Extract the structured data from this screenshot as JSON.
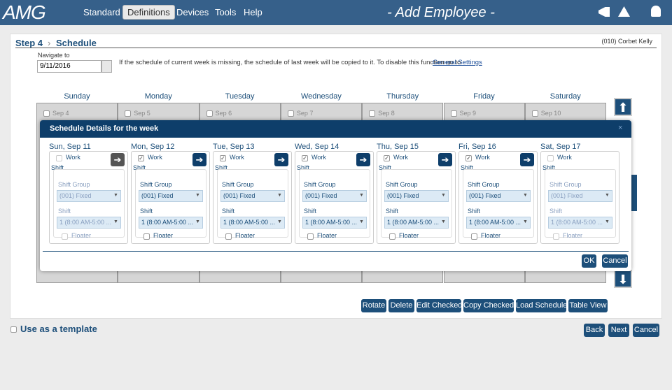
{
  "nav": {
    "logo": "AMG",
    "menu": [
      "Standard",
      "Definitions",
      "Devices",
      "Tools",
      "Help"
    ],
    "active": 1,
    "page_title": "- Add Employee -"
  },
  "step": {
    "title": "Step 4",
    "section": "Schedule",
    "employee": "(010) Corbet Kelly"
  },
  "navigate": {
    "label": "Navigate to",
    "date": "9/11/2016",
    "note": "If the schedule of current week is missing, the schedule of last week will be copied to it. To disable this function go to",
    "link": "General Settings",
    "period": "."
  },
  "week": [
    {
      "name": "Sunday",
      "date": "Sep 4"
    },
    {
      "name": "Monday",
      "date": "Sep 5"
    },
    {
      "name": "Tuesday",
      "date": "Sep 6"
    },
    {
      "name": "Wednesday",
      "date": "Sep 7"
    },
    {
      "name": "Thursday",
      "date": "Sep 8"
    },
    {
      "name": "Friday",
      "date": "Sep 9"
    },
    {
      "name": "Saturday",
      "date": "Sep 10"
    }
  ],
  "modal": {
    "title": "Schedule Details for the week",
    "labels": {
      "work": "Work",
      "shift": "Shift",
      "shift_group": "Shift Group",
      "shift_field": "Shift",
      "floater": "Floater"
    },
    "days": [
      {
        "heading": "Sun, Sep 11",
        "work": false,
        "group": "(001) Fixed",
        "shift": "1 (8:00 AM-5:00 ..."
      },
      {
        "heading": "Mon, Sep 12",
        "work": true,
        "group": "(001) Fixed",
        "shift": "1 (8:00 AM-5:00 ..."
      },
      {
        "heading": "Tue, Sep 13",
        "work": true,
        "group": "(001) Fixed",
        "shift": "1 (8:00 AM-5:00 ..."
      },
      {
        "heading": "Wed, Sep 14",
        "work": true,
        "group": "(001) Fixed",
        "shift": "1 (8:00 AM-5:00 ..."
      },
      {
        "heading": "Thu, Sep 15",
        "work": true,
        "group": "(001) Fixed",
        "shift": "1 (8:00 AM-5:00 ..."
      },
      {
        "heading": "Fri, Sep 16",
        "work": true,
        "group": "(001) Fixed",
        "shift": "1 (8:00 AM-5:00 ..."
      },
      {
        "heading": "Sat, Sep 17",
        "work": false,
        "group": "(001) Fixed",
        "shift": "1 (8:00 AM-5:00 ..."
      }
    ],
    "buttons": [
      "OK",
      "Cancel"
    ]
  },
  "toolbar": [
    "Rotate",
    "Delete",
    "Edit Checked",
    "Copy Checked",
    "Load Schedule",
    "Table View"
  ],
  "template": "Use as a template",
  "footer_buttons": [
    "Back",
    "Next",
    "Cancel"
  ]
}
